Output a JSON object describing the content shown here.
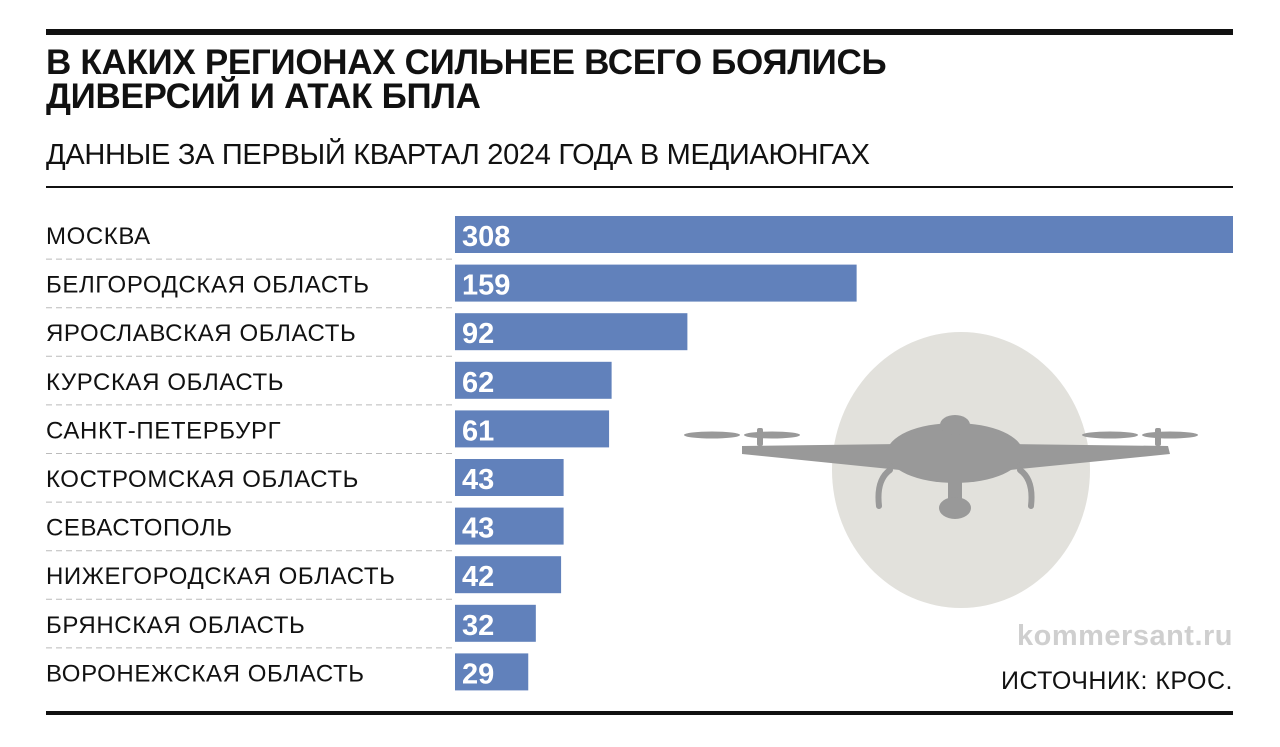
{
  "colors": {
    "bar": "#6181bb",
    "circle": "#e2e1dc",
    "drone": "#999999",
    "separator": "#bbbbbb"
  },
  "header": {
    "title_line1": "В КАКИХ РЕГИОНАХ СИЛЬНЕЕ ВСЕГО БОЯЛИСЬ",
    "title_line2": "ДИВЕРСИЙ И АТАК БПЛА",
    "subtitle": "ДАННЫЕ ЗА ПЕРВЫЙ КВАРТАЛ 2024 ГОДА В МЕДИАЮНГАХ"
  },
  "footer": {
    "site": "kommersant.ru",
    "source": "ИСТОЧНИК: КРОС."
  },
  "chart_data": {
    "type": "bar",
    "orientation": "horizontal",
    "title": "В КАКИХ РЕГИОНАХ СИЛЬНЕЕ ВСЕГО БОЯЛИСЬ ДИВЕРСИЙ И АТАК БПЛА",
    "subtitle": "ДАННЫЕ ЗА ПЕРВЫЙ КВАРТАЛ 2024 ГОДА В МЕДИАЮНГАХ",
    "categories": [
      "МОСКВА",
      "БЕЛГОРОДСКАЯ ОБЛАСТЬ",
      "ЯРОСЛАВСКАЯ ОБЛАСТЬ",
      "КУРСКАЯ ОБЛАСТЬ",
      "САНКТ-ПЕТЕРБУРГ",
      "КОСТРОМСКАЯ ОБЛАСТЬ",
      "СЕВАСТОПОЛЬ",
      "НИЖЕГОРОДСКАЯ ОБЛАСТЬ",
      "БРЯНСКАЯ ОБЛАСТЬ",
      "ВОРОНЕЖСКАЯ ОБЛАСТЬ"
    ],
    "values": [
      308,
      159,
      92,
      62,
      61,
      43,
      43,
      42,
      32,
      29
    ],
    "xlim": [
      0,
      308
    ],
    "grid": false,
    "xlabel": "",
    "ylabel": ""
  }
}
